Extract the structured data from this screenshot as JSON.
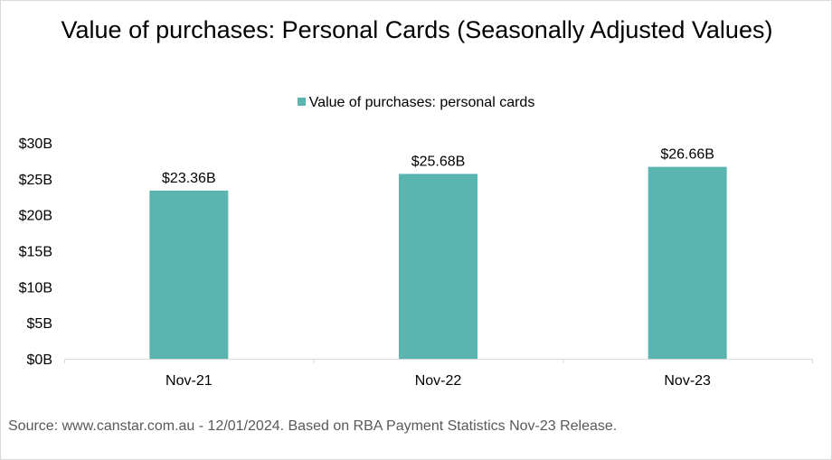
{
  "chart_data": {
    "type": "bar",
    "title": "Value of purchases: Personal Cards (Seasonally Adjusted Values)",
    "categories": [
      "Nov-21",
      "Nov-22",
      "Nov-23"
    ],
    "series": [
      {
        "name": "Value of purchases: personal cards",
        "values": [
          23.36,
          25.68,
          26.66
        ],
        "data_labels": [
          "$23.36B",
          "$25.68B",
          "$26.66B"
        ]
      }
    ],
    "ylim": [
      0,
      30
    ],
    "yticks": [
      0,
      5,
      10,
      15,
      20,
      25,
      30
    ],
    "ytick_labels": [
      "$0B",
      "$5B",
      "$10B",
      "$15B",
      "$20B",
      "$25B",
      "$30B"
    ],
    "xlabel": "",
    "ylabel": "",
    "grid": false,
    "legend_position": "top",
    "bar_color": "#5ab4b0"
  },
  "source_note": "Source: www.canstar.com.au - 12/01/2024. Based on RBA Payment Statistics Nov-23 Release."
}
